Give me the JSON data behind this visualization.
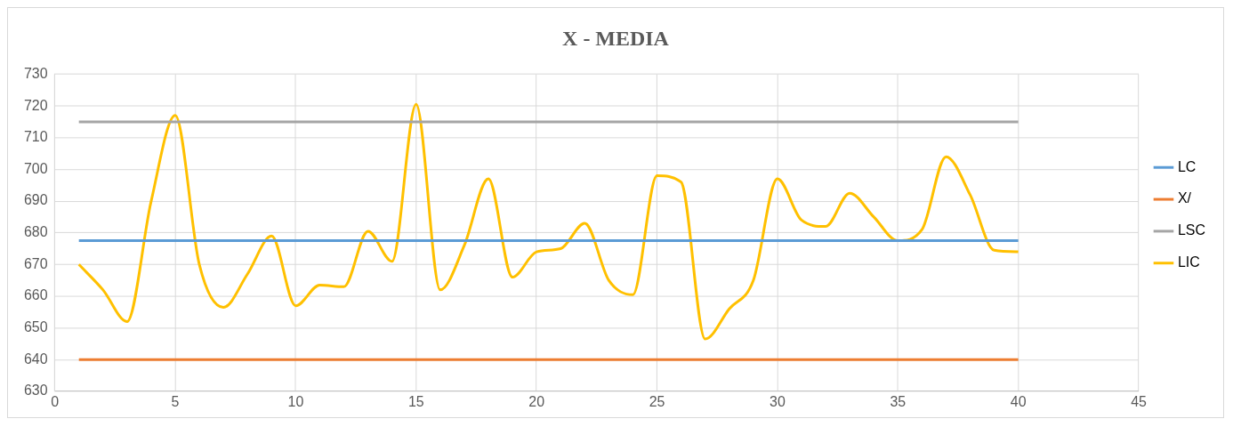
{
  "chart_data": {
    "type": "line",
    "title": "X - MEDIA",
    "x": [
      1,
      2,
      3,
      4,
      5,
      6,
      7,
      8,
      9,
      10,
      11,
      12,
      13,
      14,
      15,
      16,
      17,
      18,
      19,
      20,
      21,
      22,
      23,
      24,
      25,
      26,
      27,
      28,
      29,
      30,
      31,
      32,
      33,
      34,
      35,
      36,
      37,
      38,
      39,
      40
    ],
    "series": [
      {
        "name": "LC",
        "color": "#5b9bd5",
        "values": [
          677.5,
          677.5,
          677.5,
          677.5,
          677.5,
          677.5,
          677.5,
          677.5,
          677.5,
          677.5,
          677.5,
          677.5,
          677.5,
          677.5,
          677.5,
          677.5,
          677.5,
          677.5,
          677.5,
          677.5,
          677.5,
          677.5,
          677.5,
          677.5,
          677.5,
          677.5,
          677.5,
          677.5,
          677.5,
          677.5,
          677.5,
          677.5,
          677.5,
          677.5,
          677.5,
          677.5,
          677.5,
          677.5,
          677.5,
          677.5
        ]
      },
      {
        "name": "X/",
        "color": "#ed7d31",
        "values": [
          640,
          640,
          640,
          640,
          640,
          640,
          640,
          640,
          640,
          640,
          640,
          640,
          640,
          640,
          640,
          640,
          640,
          640,
          640,
          640,
          640,
          640,
          640,
          640,
          640,
          640,
          640,
          640,
          640,
          640,
          640,
          640,
          640,
          640,
          640,
          640,
          640,
          640,
          640,
          640
        ]
      },
      {
        "name": "LSC",
        "color": "#a5a5a5",
        "values": [
          715,
          715,
          715,
          715,
          715,
          715,
          715,
          715,
          715,
          715,
          715,
          715,
          715,
          715,
          715,
          715,
          715,
          715,
          715,
          715,
          715,
          715,
          715,
          715,
          715,
          715,
          715,
          715,
          715,
          715,
          715,
          715,
          715,
          715,
          715,
          715,
          715,
          715,
          715,
          715
        ]
      },
      {
        "name": "LIC",
        "color": "#ffc000",
        "values": [
          670,
          662,
          652,
          690,
          717,
          670,
          656.5,
          667,
          679,
          657,
          663.5,
          663,
          680.5,
          671,
          720.5,
          662,
          676,
          697,
          666,
          674,
          675,
          683,
          665,
          660.5,
          698,
          696,
          646.5,
          656,
          665,
          697,
          684,
          682,
          692.5,
          685,
          677.5,
          681,
          704,
          692,
          674.5,
          674
        ]
      }
    ],
    "xlim": [
      0,
      45
    ],
    "xticks": [
      0,
      5,
      10,
      15,
      20,
      25,
      30,
      35,
      40,
      45
    ],
    "ylim": [
      630,
      730
    ],
    "yticks": [
      630,
      640,
      650,
      660,
      670,
      680,
      690,
      700,
      710,
      720,
      730
    ],
    "grid": true,
    "legend": "right",
    "marker": "none",
    "line_style": "solid"
  }
}
